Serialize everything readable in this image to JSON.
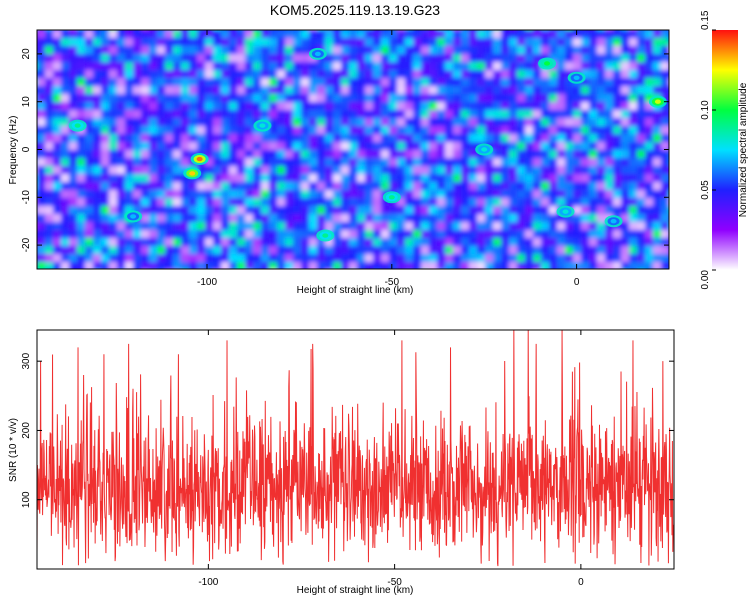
{
  "title": "KOM5.2025.119.13.19.G23",
  "chart_data": [
    {
      "type": "heatmap",
      "xlabel": "Height of straight line (km)",
      "ylabel": "Frequency (Hz)",
      "xlim": [
        -146,
        25
      ],
      "ylim": [
        -25,
        25
      ],
      "xticks": [
        -100,
        -50,
        0
      ],
      "yticks": [
        -20,
        -10,
        0,
        10,
        20
      ],
      "colorbar": {
        "label": "Normalized spectral amplitude",
        "range": [
          0,
          0.15
        ],
        "ticks": [
          "0.00",
          "0.05",
          "0.10",
          "0.15"
        ],
        "colors": [
          "#ffffff",
          "#9000ff",
          "#2020ff",
          "#00e0ff",
          "#00ff40",
          "#ffff00",
          "#ff1010"
        ]
      },
      "peaks": [
        {
          "x": -102,
          "y": -2,
          "v": 0.14
        },
        {
          "x": -104,
          "y": -5,
          "v": 0.13
        },
        {
          "x": 22,
          "y": 10,
          "v": 0.12
        },
        {
          "x": -8,
          "y": 18,
          "v": 0.1
        },
        {
          "x": -135,
          "y": 5,
          "v": 0.09
        },
        {
          "x": -50,
          "y": -10,
          "v": 0.09
        },
        {
          "x": -25,
          "y": 0,
          "v": 0.08
        },
        {
          "x": -68,
          "y": -18,
          "v": 0.09
        },
        {
          "x": -3,
          "y": -13,
          "v": 0.08
        },
        {
          "x": -85,
          "y": 5,
          "v": 0.08
        },
        {
          "x": 10,
          "y": -15,
          "v": 0.07
        },
        {
          "x": -120,
          "y": -14,
          "v": 0.07
        },
        {
          "x": -70,
          "y": 20,
          "v": 0.07
        },
        {
          "x": 0,
          "y": 15,
          "v": 0.07
        }
      ]
    },
    {
      "type": "line",
      "xlabel": "Height of straight line (km)",
      "ylabel": "SNR (10 * v/v)",
      "xlim": [
        -146,
        25
      ],
      "ylim": [
        0,
        345
      ],
      "xticks": [
        -100,
        -50,
        0
      ],
      "yticks": [
        100,
        200,
        300
      ],
      "series": [
        {
          "color": "#f03030",
          "base": 115,
          "spread": 60,
          "max": 345,
          "spikes": [
            {
              "x": -145,
              "y": 300
            },
            {
              "x": -135,
              "y": 320
            },
            {
              "x": -128,
              "y": 310
            },
            {
              "x": -108,
              "y": 310
            },
            {
              "x": -95,
              "y": 330
            },
            {
              "x": -72,
              "y": 325
            },
            {
              "x": -48,
              "y": 330
            },
            {
              "x": -35,
              "y": 320
            },
            {
              "x": -18,
              "y": 345
            },
            {
              "x": -12,
              "y": 325
            },
            {
              "x": -5,
              "y": 345
            },
            {
              "x": 14,
              "y": 330
            },
            {
              "x": 22,
              "y": 300
            }
          ]
        }
      ]
    }
  ]
}
